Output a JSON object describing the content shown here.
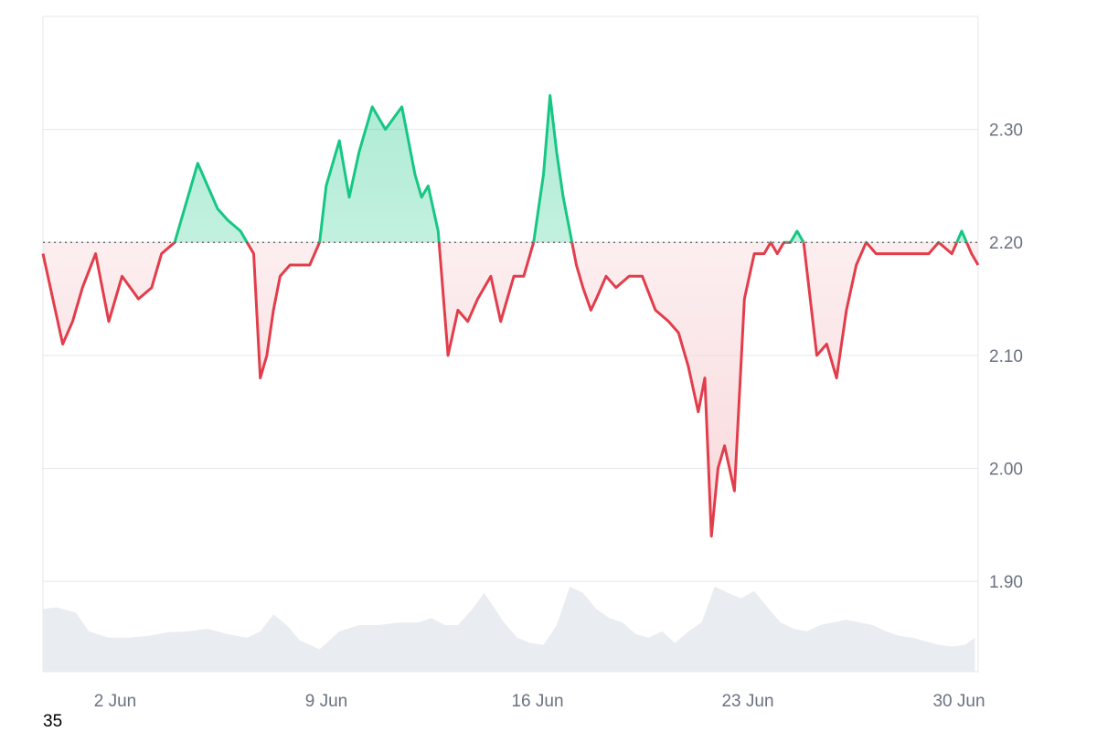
{
  "corner_text": "35",
  "colors": {
    "up_line": "#16c784",
    "down_line": "#e23d4b",
    "up_fill": "#16c784",
    "down_fill": "#f8d7da",
    "grid": "#e5e7eb",
    "baseline": "#555555",
    "volume": "#e9edf1",
    "tick_text": "#6b7280"
  },
  "chart_data": {
    "type": "area",
    "baseline": 2.2,
    "y_axis": {
      "ticks": [
        "1.90",
        "2.00",
        "2.10",
        "2.20",
        "2.30"
      ],
      "range": [
        1.82,
        2.4
      ],
      "position": "right"
    },
    "x_axis": {
      "ticks": [
        "2 Jun",
        "9 Jun",
        "16 Jun",
        "23 Jun",
        "30 Jun"
      ],
      "range": [
        30.3,
        44.5
      ]
    },
    "grid": true,
    "series": [
      {
        "x": [
          30.3,
          30.45,
          30.6,
          30.75,
          30.9,
          31.1,
          31.3,
          31.5,
          31.75,
          31.95,
          32.1,
          32.3,
          32.5,
          32.65,
          32.8,
          32.95,
          33.1,
          33.3,
          33.5,
          33.6,
          33.7,
          33.8,
          33.9,
          34.05,
          34.2,
          34.35,
          34.5,
          34.6,
          34.8,
          34.95,
          35.1,
          35.3,
          35.5,
          35.75,
          35.95,
          36.05,
          36.15,
          36.3,
          36.45,
          36.6,
          36.75,
          36.9,
          37.1,
          37.25,
          37.35,
          37.45,
          37.6,
          37.75,
          37.9,
          38.0,
          38.1,
          38.2,
          38.3,
          38.4,
          38.5,
          38.62,
          38.7,
          38.85,
          39.0,
          39.2,
          39.4,
          39.6,
          39.8,
          39.95,
          40.1,
          40.25,
          40.35,
          40.45,
          40.55,
          40.65,
          40.8,
          40.95,
          41.1,
          41.25,
          41.35,
          41.45,
          41.55,
          41.65,
          41.75,
          41.85,
          41.95,
          42.05,
          42.2,
          42.35,
          42.5,
          42.65,
          42.8,
          42.95,
          43.05,
          43.15,
          43.3,
          43.45,
          43.6,
          43.75,
          43.9,
          44.1,
          44.25,
          44.4,
          44.5
        ],
        "y": [
          2.19,
          2.15,
          2.11,
          2.13,
          2.16,
          2.19,
          2.13,
          2.17,
          2.15,
          2.16,
          2.19,
          2.2,
          2.24,
          2.27,
          2.25,
          2.23,
          2.22,
          2.21,
          2.19,
          2.08,
          2.1,
          2.14,
          2.17,
          2.18,
          2.18,
          2.18,
          2.2,
          2.25,
          2.29,
          2.24,
          2.28,
          2.32,
          2.3,
          2.32,
          2.26,
          2.24,
          2.25,
          2.21,
          2.1,
          2.14,
          2.13,
          2.15,
          2.17,
          2.13,
          2.15,
          2.17,
          2.17,
          2.2,
          2.26,
          2.33,
          2.28,
          2.24,
          2.21,
          2.18,
          2.16,
          2.14,
          2.15,
          2.17,
          2.16,
          2.17,
          2.17,
          2.14,
          2.13,
          2.12,
          2.09,
          2.05,
          2.08,
          1.94,
          2.0,
          2.02,
          1.98,
          2.15,
          2.19,
          2.19,
          2.2,
          2.19,
          2.2,
          2.2,
          2.21,
          2.2,
          2.15,
          2.1,
          2.11,
          2.08,
          2.14,
          2.18,
          2.2,
          2.19,
          2.19,
          2.19,
          2.19,
          2.19,
          2.19,
          2.19,
          2.2,
          2.19,
          2.21,
          2.19,
          2.18
        ]
      }
    ],
    "volume": {
      "x": [
        30.3,
        30.5,
        30.8,
        31.0,
        31.3,
        31.6,
        31.9,
        32.2,
        32.5,
        32.8,
        33.1,
        33.4,
        33.6,
        33.8,
        34.0,
        34.2,
        34.5,
        34.8,
        35.1,
        35.4,
        35.7,
        36.0,
        36.2,
        36.4,
        36.6,
        36.8,
        37.0,
        37.3,
        37.5,
        37.7,
        37.9,
        38.1,
        38.3,
        38.5,
        38.7,
        38.9,
        39.1,
        39.3,
        39.5,
        39.7,
        39.9,
        40.1,
        40.3,
        40.5,
        40.7,
        40.9,
        41.1,
        41.3,
        41.5,
        41.7,
        41.9,
        42.1,
        42.3,
        42.5,
        42.7,
        42.9,
        43.1,
        43.3,
        43.5,
        43.7,
        43.9,
        44.1,
        44.3,
        44.45
      ],
      "y": [
        0.7,
        0.72,
        0.66,
        0.45,
        0.38,
        0.38,
        0.4,
        0.44,
        0.45,
        0.48,
        0.42,
        0.38,
        0.45,
        0.64,
        0.52,
        0.35,
        0.25,
        0.45,
        0.52,
        0.52,
        0.55,
        0.55,
        0.6,
        0.52,
        0.52,
        0.68,
        0.88,
        0.55,
        0.38,
        0.32,
        0.3,
        0.52,
        0.95,
        0.88,
        0.7,
        0.6,
        0.55,
        0.42,
        0.38,
        0.45,
        0.32,
        0.45,
        0.55,
        0.95,
        0.88,
        0.82,
        0.9,
        0.72,
        0.55,
        0.48,
        0.45,
        0.52,
        0.55,
        0.58,
        0.55,
        0.52,
        0.45,
        0.4,
        0.38,
        0.34,
        0.3,
        0.28,
        0.3,
        0.38
      ]
    }
  }
}
